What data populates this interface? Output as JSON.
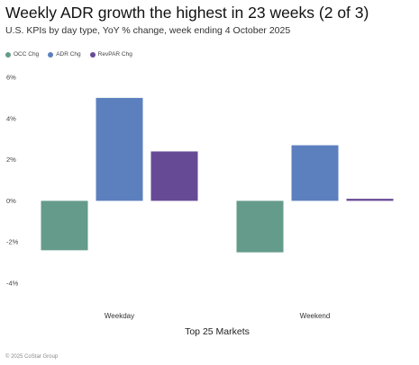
{
  "title": "Weekly ADR growth the highest in 23 weeks (2 of 3)",
  "subtitle": "U.S. KPIs by day type, YoY % change, week ending 4 October 2025",
  "footer": "© 2025 CoStar Group",
  "legend": [
    {
      "label": "OCC Chg",
      "color": "#659b8b"
    },
    {
      "label": "ADR Chg",
      "color": "#5c80be"
    },
    {
      "label": "RevPAR Chg",
      "color": "#674a96"
    }
  ],
  "chart_data": {
    "type": "bar",
    "title": "Weekly ADR growth the highest in 23 weeks (2 of 3)",
    "xlabel": "Top 25 Markets",
    "ylabel": "",
    "categories": [
      "Weekday",
      "Weekend"
    ],
    "series": [
      {
        "name": "OCC Chg",
        "color": "#659b8b",
        "values": [
          -2.4,
          -2.5
        ]
      },
      {
        "name": "ADR Chg",
        "color": "#5c80be",
        "values": [
          5.0,
          2.7
        ]
      },
      {
        "name": "RevPAR Chg",
        "color": "#674a96",
        "values": [
          2.4,
          0.1
        ]
      }
    ],
    "ylim": [
      -4,
      6
    ],
    "yticks": [
      6,
      4,
      2,
      0,
      -2,
      -4
    ],
    "ytick_labels": [
      "6%",
      "4%",
      "2%",
      "0%",
      "-2%",
      "-4%"
    ],
    "grid": false,
    "legend_position": "top-left"
  }
}
